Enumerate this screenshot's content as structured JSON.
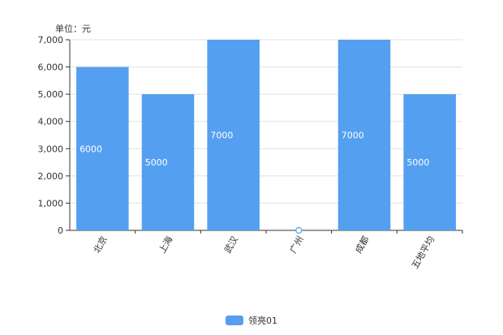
{
  "chart_data": {
    "type": "bar",
    "y_unit_label": "单位：元",
    "categories": [
      "北京",
      "上海",
      "武汉",
      "广州",
      "成都",
      "五地平均"
    ],
    "series": [
      {
        "name": "领亮01",
        "values": [
          6000,
          5000,
          7000,
          0,
          7000,
          5000
        ]
      }
    ],
    "data_labels": [
      "6000",
      "5000",
      "7000",
      "",
      "7000",
      "5000"
    ],
    "ylim": [
      0,
      7000
    ],
    "yticks": [
      0,
      1000,
      2000,
      3000,
      4000,
      5000,
      6000,
      7000
    ],
    "ytick_labels": [
      "0",
      "1,000",
      "2,000",
      "3,000",
      "4,000",
      "5,000",
      "6,000",
      "7,000"
    ],
    "grid": true,
    "legend_position": "bottom-center",
    "colors": {
      "bar": "#559ff0",
      "grid": "#e0e0e0",
      "axis": "#333333",
      "label": "#ffffff"
    }
  }
}
